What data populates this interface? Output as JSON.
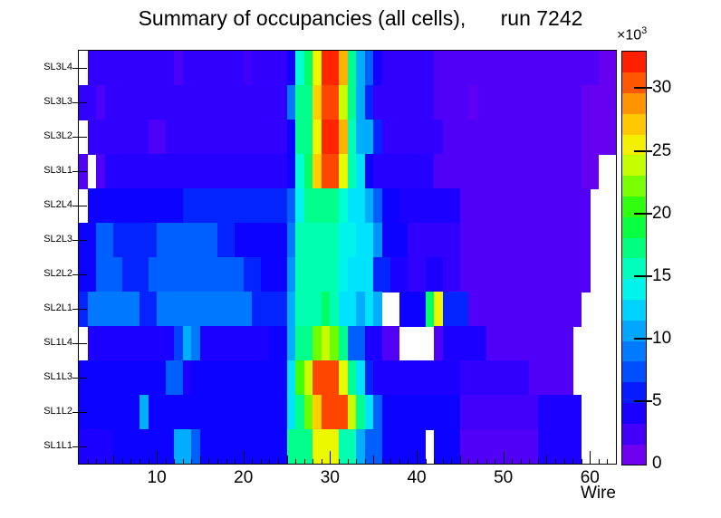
{
  "title": "Summary of occupancies (all cells),      run 7242",
  "x_axis": {
    "label": "Wire",
    "tick_labels": [
      10,
      20,
      30,
      40,
      50,
      60
    ],
    "range": [
      1,
      63
    ],
    "minor_tick_step": 1,
    "medium_tick_step": 5
  },
  "y_axis": {
    "labels_top_to_bottom": [
      "SL3L4",
      "SL3L3",
      "SL3L2",
      "SL3L1",
      "SL2L4",
      "SL2L3",
      "SL2L2",
      "SL2L1",
      "SL1L4",
      "SL1L3",
      "SL1L2",
      "SL1L1"
    ]
  },
  "colorbar": {
    "tick_values": [
      0,
      5,
      10,
      15,
      20,
      25,
      30
    ],
    "vmax_thousands": 33,
    "exponent_base": "×10",
    "exponent_sup": "3",
    "bands": 20
  },
  "chart_data": {
    "type": "heatmap",
    "title": "Summary of occupancies (all cells),      run 7242",
    "xlabel": "Wire",
    "x_range": [
      1,
      62
    ],
    "unit": "counts × 10³ (values below are in thousands; null = empty/white bin)",
    "vmax": 33,
    "legend_position": "right-colorbar",
    "grid": false,
    "palette_stops": [
      [
        0.0,
        "#8000e8"
      ],
      [
        0.05,
        "#5c00f5"
      ],
      [
        0.1,
        "#2800ff"
      ],
      [
        0.15,
        "#0b00ff"
      ],
      [
        0.2,
        "#0038ff"
      ],
      [
        0.25,
        "#0066ff"
      ],
      [
        0.3,
        "#0090ff"
      ],
      [
        0.35,
        "#00bcff"
      ],
      [
        0.4,
        "#00e8ff"
      ],
      [
        0.45,
        "#00ffd8"
      ],
      [
        0.5,
        "#00ffa0"
      ],
      [
        0.55,
        "#00ff60"
      ],
      [
        0.6,
        "#10ff20"
      ],
      [
        0.65,
        "#50ff00"
      ],
      [
        0.7,
        "#a0ff00"
      ],
      [
        0.75,
        "#e8fc00"
      ],
      [
        0.8,
        "#ffe000"
      ],
      [
        0.85,
        "#ffb000"
      ],
      [
        0.9,
        "#ff7800"
      ],
      [
        0.95,
        "#ff3800"
      ],
      [
        1.0,
        "#ff0800"
      ]
    ],
    "rows": [
      {
        "label": "SL3L4",
        "runs": [
          [
            1,
            1,
            null
          ],
          [
            2,
            11,
            3
          ],
          [
            12,
            12,
            2.2
          ],
          [
            13,
            19,
            3
          ],
          [
            20,
            20,
            2.5
          ],
          [
            21,
            24,
            3
          ],
          [
            25,
            25,
            4.5
          ],
          [
            26,
            26,
            15
          ],
          [
            27,
            27,
            18
          ],
          [
            28,
            28,
            25
          ],
          [
            29,
            30,
            32
          ],
          [
            31,
            31,
            28
          ],
          [
            32,
            32,
            17
          ],
          [
            33,
            33,
            11
          ],
          [
            34,
            34,
            8
          ],
          [
            35,
            35,
            4.5
          ],
          [
            36,
            41,
            3
          ],
          [
            42,
            60,
            2
          ],
          [
            61,
            62,
            1.2
          ]
        ]
      },
      {
        "label": "SL3L3",
        "runs": [
          [
            1,
            2,
            3
          ],
          [
            3,
            3,
            2.2
          ],
          [
            4,
            24,
            3
          ],
          [
            25,
            25,
            9
          ],
          [
            26,
            27,
            17
          ],
          [
            28,
            28,
            27
          ],
          [
            29,
            30,
            31
          ],
          [
            31,
            31,
            24
          ],
          [
            32,
            32,
            17
          ],
          [
            33,
            33,
            11
          ],
          [
            34,
            34,
            6
          ],
          [
            35,
            41,
            3
          ],
          [
            42,
            45,
            2
          ],
          [
            46,
            46,
            1.5
          ],
          [
            47,
            58,
            2
          ],
          [
            59,
            62,
            1.2
          ]
        ]
      },
      {
        "label": "SL3L2",
        "runs": [
          [
            1,
            1,
            null
          ],
          [
            2,
            8,
            3
          ],
          [
            9,
            10,
            2.2
          ],
          [
            11,
            24,
            3
          ],
          [
            25,
            25,
            5
          ],
          [
            26,
            27,
            17
          ],
          [
            28,
            28,
            25
          ],
          [
            29,
            30,
            32
          ],
          [
            31,
            31,
            28
          ],
          [
            32,
            32,
            16
          ],
          [
            33,
            34,
            11
          ],
          [
            35,
            35,
            6
          ],
          [
            36,
            42,
            3
          ],
          [
            43,
            58,
            2
          ],
          [
            59,
            62,
            1.2
          ]
        ]
      },
      {
        "label": "SL3L1",
        "runs": [
          [
            1,
            1,
            2
          ],
          [
            2,
            2,
            null
          ],
          [
            3,
            3,
            2
          ],
          [
            4,
            24,
            3.5
          ],
          [
            25,
            25,
            5
          ],
          [
            26,
            26,
            15
          ],
          [
            27,
            27,
            18
          ],
          [
            28,
            28,
            27
          ],
          [
            29,
            30,
            31
          ],
          [
            31,
            31,
            25
          ],
          [
            32,
            32,
            16
          ],
          [
            33,
            33,
            13
          ],
          [
            34,
            34,
            5
          ],
          [
            35,
            41,
            3.5
          ],
          [
            42,
            58,
            2
          ],
          [
            59,
            60,
            1.2
          ],
          [
            61,
            62,
            null
          ]
        ]
      },
      {
        "label": "SL2L4",
        "runs": [
          [
            1,
            1,
            null
          ],
          [
            2,
            12,
            5
          ],
          [
            13,
            24,
            6
          ],
          [
            25,
            25,
            8
          ],
          [
            26,
            26,
            14
          ],
          [
            27,
            30,
            17
          ],
          [
            31,
            31,
            15
          ],
          [
            32,
            33,
            13
          ],
          [
            34,
            34,
            11
          ],
          [
            35,
            35,
            8
          ],
          [
            36,
            37,
            5
          ],
          [
            38,
            44,
            4
          ],
          [
            45,
            59,
            2
          ],
          [
            60,
            62,
            null
          ]
        ]
      },
      {
        "label": "SL2L3",
        "runs": [
          [
            1,
            2,
            5
          ],
          [
            3,
            4,
            8
          ],
          [
            5,
            9,
            6
          ],
          [
            10,
            16,
            8
          ],
          [
            17,
            18,
            6
          ],
          [
            19,
            24,
            5
          ],
          [
            25,
            25,
            9
          ],
          [
            26,
            30,
            16
          ],
          [
            31,
            32,
            14
          ],
          [
            33,
            34,
            13
          ],
          [
            35,
            35,
            10
          ],
          [
            36,
            38,
            5
          ],
          [
            39,
            44,
            3
          ],
          [
            45,
            59,
            2
          ],
          [
            60,
            62,
            null
          ]
        ]
      },
      {
        "label": "SL2L2",
        "runs": [
          [
            1,
            2,
            5
          ],
          [
            3,
            5,
            8
          ],
          [
            6,
            8,
            6
          ],
          [
            9,
            19,
            8
          ],
          [
            20,
            21,
            6
          ],
          [
            22,
            24,
            5
          ],
          [
            25,
            25,
            10
          ],
          [
            26,
            30,
            16
          ],
          [
            31,
            31,
            14
          ],
          [
            32,
            33,
            13
          ],
          [
            34,
            34,
            13
          ],
          [
            35,
            36,
            6
          ],
          [
            37,
            38,
            4
          ],
          [
            39,
            40,
            3
          ],
          [
            41,
            42,
            4
          ],
          [
            43,
            44,
            3
          ],
          [
            45,
            59,
            2
          ],
          [
            60,
            62,
            null
          ]
        ]
      },
      {
        "label": "SL2L1",
        "runs": [
          [
            1,
            1,
            6
          ],
          [
            2,
            7,
            9
          ],
          [
            8,
            9,
            6
          ],
          [
            10,
            20,
            9
          ],
          [
            21,
            24,
            6
          ],
          [
            25,
            25,
            11
          ],
          [
            26,
            28,
            16
          ],
          [
            29,
            29,
            18
          ],
          [
            30,
            30,
            16
          ],
          [
            31,
            32,
            13
          ],
          [
            33,
            33,
            11
          ],
          [
            34,
            34,
            13
          ],
          [
            35,
            35,
            11
          ],
          [
            36,
            37,
            null
          ],
          [
            38,
            40,
            5
          ],
          [
            41,
            41,
            18
          ],
          [
            42,
            42,
            25
          ],
          [
            43,
            45,
            6
          ],
          [
            46,
            58,
            2
          ],
          [
            59,
            62,
            null
          ]
        ]
      },
      {
        "label": "SL1L4",
        "runs": [
          [
            1,
            1,
            null
          ],
          [
            2,
            11,
            4
          ],
          [
            12,
            12,
            7
          ],
          [
            13,
            13,
            11
          ],
          [
            14,
            14,
            9
          ],
          [
            15,
            22,
            4
          ],
          [
            23,
            24,
            5
          ],
          [
            25,
            25,
            11
          ],
          [
            26,
            27,
            17
          ],
          [
            28,
            28,
            22
          ],
          [
            29,
            29,
            24
          ],
          [
            30,
            30,
            22
          ],
          [
            31,
            31,
            17
          ],
          [
            32,
            33,
            8
          ],
          [
            34,
            35,
            4
          ],
          [
            36,
            37,
            2
          ],
          [
            38,
            41,
            null
          ],
          [
            42,
            42,
            2
          ],
          [
            43,
            47,
            4
          ],
          [
            48,
            57,
            2
          ],
          [
            58,
            62,
            null
          ]
        ]
      },
      {
        "label": "SL1L3",
        "runs": [
          [
            1,
            10,
            5
          ],
          [
            11,
            12,
            8
          ],
          [
            13,
            13,
            4
          ],
          [
            14,
            24,
            5
          ],
          [
            25,
            25,
            13
          ],
          [
            26,
            26,
            21
          ],
          [
            27,
            27,
            24
          ],
          [
            28,
            30,
            31
          ],
          [
            31,
            31,
            25
          ],
          [
            32,
            32,
            17
          ],
          [
            33,
            33,
            13
          ],
          [
            34,
            34,
            6
          ],
          [
            35,
            44,
            4
          ],
          [
            45,
            52,
            3
          ],
          [
            53,
            57,
            2
          ],
          [
            58,
            62,
            null
          ]
        ]
      },
      {
        "label": "SL1L2",
        "runs": [
          [
            1,
            7,
            5
          ],
          [
            8,
            8,
            11
          ],
          [
            9,
            24,
            5
          ],
          [
            25,
            25,
            13
          ],
          [
            26,
            26,
            17
          ],
          [
            27,
            27,
            22
          ],
          [
            28,
            28,
            27
          ],
          [
            29,
            31,
            31
          ],
          [
            32,
            32,
            24
          ],
          [
            33,
            33,
            17
          ],
          [
            34,
            34,
            13
          ],
          [
            35,
            35,
            8
          ],
          [
            36,
            44,
            5
          ],
          [
            45,
            53,
            2.5
          ],
          [
            54,
            58,
            4
          ],
          [
            59,
            62,
            null
          ]
        ]
      },
      {
        "label": "SL1L1",
        "runs": [
          [
            1,
            1,
            4
          ],
          [
            2,
            4,
            4
          ],
          [
            5,
            11,
            5
          ],
          [
            12,
            13,
            11
          ],
          [
            14,
            14,
            8
          ],
          [
            15,
            24,
            5
          ],
          [
            25,
            27,
            17
          ],
          [
            28,
            30,
            25
          ],
          [
            31,
            32,
            16
          ],
          [
            33,
            33,
            11
          ],
          [
            34,
            35,
            8
          ],
          [
            36,
            40,
            5
          ],
          [
            41,
            41,
            null
          ],
          [
            42,
            44,
            5
          ],
          [
            45,
            53,
            2
          ],
          [
            54,
            58,
            4
          ],
          [
            59,
            62,
            null
          ]
        ]
      }
    ]
  }
}
